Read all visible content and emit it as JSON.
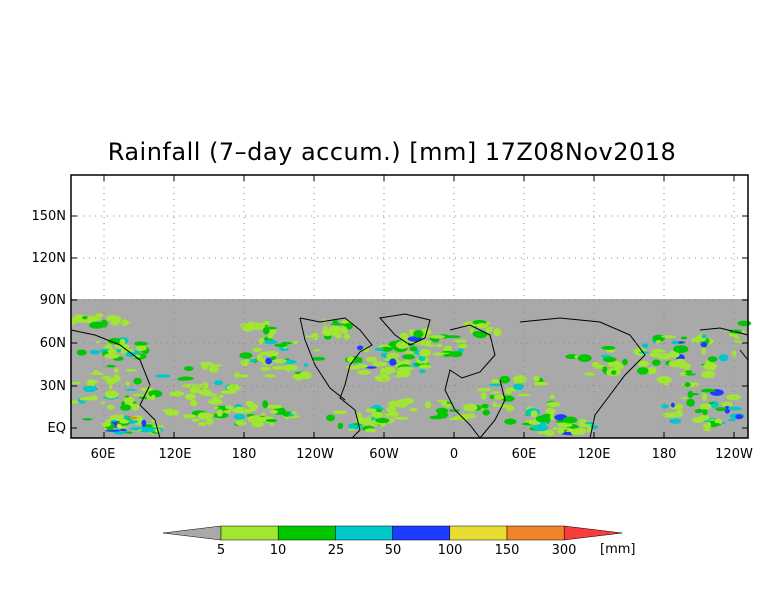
{
  "title": "Rainfall (7–day accum.) [mm] 17Z08Nov2018",
  "map": {
    "y_labels": [
      "150N",
      "120N",
      "90N",
      "60N",
      "30N",
      "EQ"
    ],
    "x_labels": [
      "60E",
      "120E",
      "180",
      "120W",
      "60W",
      "0",
      "60E",
      "120E",
      "180",
      "120W"
    ],
    "colors": {
      "no_data": "#a9a9a9",
      "land": "#a9a9a9",
      "grid": "#888888",
      "border": "#000000"
    }
  },
  "colorbar": {
    "bins": [
      {
        "label": "5",
        "color": "#a0e632"
      },
      {
        "label": "10",
        "color": "#00c800"
      },
      {
        "label": "25",
        "color": "#00c8c8"
      },
      {
        "label": "50",
        "color": "#1e3cff"
      },
      {
        "label": "100",
        "color": "#e6dc32"
      },
      {
        "label": "150",
        "color": "#f08228"
      },
      {
        "label": "300",
        "color": "#fa3c3c"
      }
    ],
    "under_color": "#a9a9a9",
    "unit": "[mm]"
  }
}
